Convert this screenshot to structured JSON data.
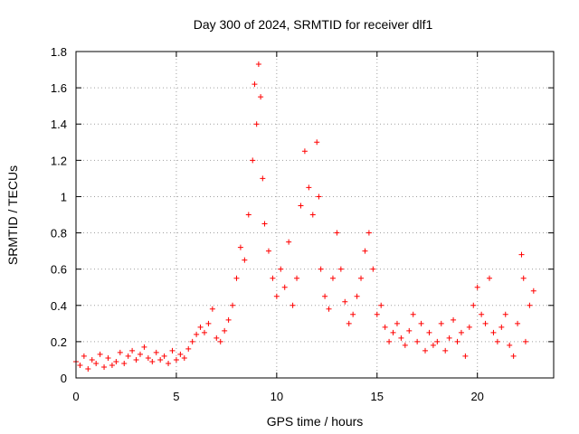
{
  "chart_data": {
    "type": "scatter",
    "title": "Day 300 of 2024, SRMTID for receiver dlf1",
    "xlabel": "GPS time / hours",
    "ylabel": "SRMTID / TECUs",
    "xlim": [
      0,
      23.8
    ],
    "ylim": [
      0,
      1.8
    ],
    "xticks": [
      0,
      5,
      10,
      15,
      20
    ],
    "xtick_labels": [
      "0",
      "5",
      "10",
      "15",
      "20"
    ],
    "yticks": [
      0,
      0.2,
      0.4,
      0.6,
      0.8,
      1.0,
      1.2,
      1.4,
      1.6,
      1.8
    ],
    "ytick_labels": [
      "0",
      "0.2",
      "0.4",
      "0.6",
      "0.8",
      "1",
      "1.2",
      "1.4",
      "1.6",
      "1.8"
    ],
    "grid": true,
    "marker": "+",
    "color": "#ff0000",
    "series": [
      {
        "name": "SRMTID dlf1",
        "points": [
          [
            0.0,
            0.09
          ],
          [
            0.2,
            0.07
          ],
          [
            0.4,
            0.12
          ],
          [
            0.6,
            0.05
          ],
          [
            0.8,
            0.1
          ],
          [
            1.0,
            0.08
          ],
          [
            1.2,
            0.13
          ],
          [
            1.4,
            0.06
          ],
          [
            1.6,
            0.11
          ],
          [
            1.8,
            0.07
          ],
          [
            2.0,
            0.09
          ],
          [
            2.2,
            0.14
          ],
          [
            2.4,
            0.08
          ],
          [
            2.6,
            0.12
          ],
          [
            2.8,
            0.15
          ],
          [
            3.0,
            0.1
          ],
          [
            3.2,
            0.13
          ],
          [
            3.4,
            0.17
          ],
          [
            3.6,
            0.11
          ],
          [
            3.8,
            0.09
          ],
          [
            4.0,
            0.14
          ],
          [
            4.2,
            0.1
          ],
          [
            4.4,
            0.12
          ],
          [
            4.6,
            0.08
          ],
          [
            4.8,
            0.15
          ],
          [
            5.0,
            0.1
          ],
          [
            5.2,
            0.13
          ],
          [
            5.4,
            0.11
          ],
          [
            5.6,
            0.16
          ],
          [
            5.8,
            0.2
          ],
          [
            6.0,
            0.24
          ],
          [
            6.2,
            0.28
          ],
          [
            6.4,
            0.25
          ],
          [
            6.6,
            0.3
          ],
          [
            6.8,
            0.38
          ],
          [
            7.0,
            0.22
          ],
          [
            7.2,
            0.2
          ],
          [
            7.4,
            0.26
          ],
          [
            7.6,
            0.32
          ],
          [
            7.8,
            0.4
          ],
          [
            8.0,
            0.55
          ],
          [
            8.2,
            0.72
          ],
          [
            8.4,
            0.65
          ],
          [
            8.6,
            0.9
          ],
          [
            8.8,
            1.2
          ],
          [
            8.9,
            1.62
          ],
          [
            9.0,
            1.4
          ],
          [
            9.1,
            1.73
          ],
          [
            9.2,
            1.55
          ],
          [
            9.3,
            1.1
          ],
          [
            9.4,
            0.85
          ],
          [
            9.6,
            0.7
          ],
          [
            9.8,
            0.55
          ],
          [
            10.0,
            0.45
          ],
          [
            10.2,
            0.6
          ],
          [
            10.4,
            0.5
          ],
          [
            10.6,
            0.75
          ],
          [
            10.8,
            0.4
          ],
          [
            11.0,
            0.55
          ],
          [
            11.2,
            0.95
          ],
          [
            11.4,
            1.25
          ],
          [
            11.6,
            1.05
          ],
          [
            11.8,
            0.9
          ],
          [
            12.0,
            1.3
          ],
          [
            12.1,
            1.0
          ],
          [
            12.2,
            0.6
          ],
          [
            12.4,
            0.45
          ],
          [
            12.6,
            0.38
          ],
          [
            12.8,
            0.55
          ],
          [
            13.0,
            0.8
          ],
          [
            13.2,
            0.6
          ],
          [
            13.4,
            0.42
          ],
          [
            13.6,
            0.3
          ],
          [
            13.8,
            0.35
          ],
          [
            14.0,
            0.45
          ],
          [
            14.2,
            0.55
          ],
          [
            14.4,
            0.7
          ],
          [
            14.6,
            0.8
          ],
          [
            14.8,
            0.6
          ],
          [
            15.0,
            0.35
          ],
          [
            15.2,
            0.4
          ],
          [
            15.4,
            0.28
          ],
          [
            15.6,
            0.2
          ],
          [
            15.8,
            0.25
          ],
          [
            16.0,
            0.3
          ],
          [
            16.2,
            0.22
          ],
          [
            16.4,
            0.18
          ],
          [
            16.6,
            0.26
          ],
          [
            16.8,
            0.35
          ],
          [
            17.0,
            0.2
          ],
          [
            17.2,
            0.3
          ],
          [
            17.4,
            0.15
          ],
          [
            17.6,
            0.25
          ],
          [
            17.8,
            0.18
          ],
          [
            18.0,
            0.2
          ],
          [
            18.2,
            0.3
          ],
          [
            18.4,
            0.15
          ],
          [
            18.6,
            0.22
          ],
          [
            18.8,
            0.32
          ],
          [
            19.0,
            0.2
          ],
          [
            19.2,
            0.25
          ],
          [
            19.4,
            0.12
          ],
          [
            19.6,
            0.28
          ],
          [
            19.8,
            0.4
          ],
          [
            20.0,
            0.5
          ],
          [
            20.2,
            0.35
          ],
          [
            20.4,
            0.3
          ],
          [
            20.6,
            0.55
          ],
          [
            20.8,
            0.25
          ],
          [
            21.0,
            0.2
          ],
          [
            21.2,
            0.28
          ],
          [
            21.4,
            0.35
          ],
          [
            21.6,
            0.18
          ],
          [
            21.8,
            0.12
          ],
          [
            22.0,
            0.3
          ],
          [
            22.2,
            0.68
          ],
          [
            22.3,
            0.55
          ],
          [
            22.4,
            0.2
          ],
          [
            22.6,
            0.4
          ],
          [
            22.8,
            0.48
          ]
        ]
      }
    ]
  }
}
